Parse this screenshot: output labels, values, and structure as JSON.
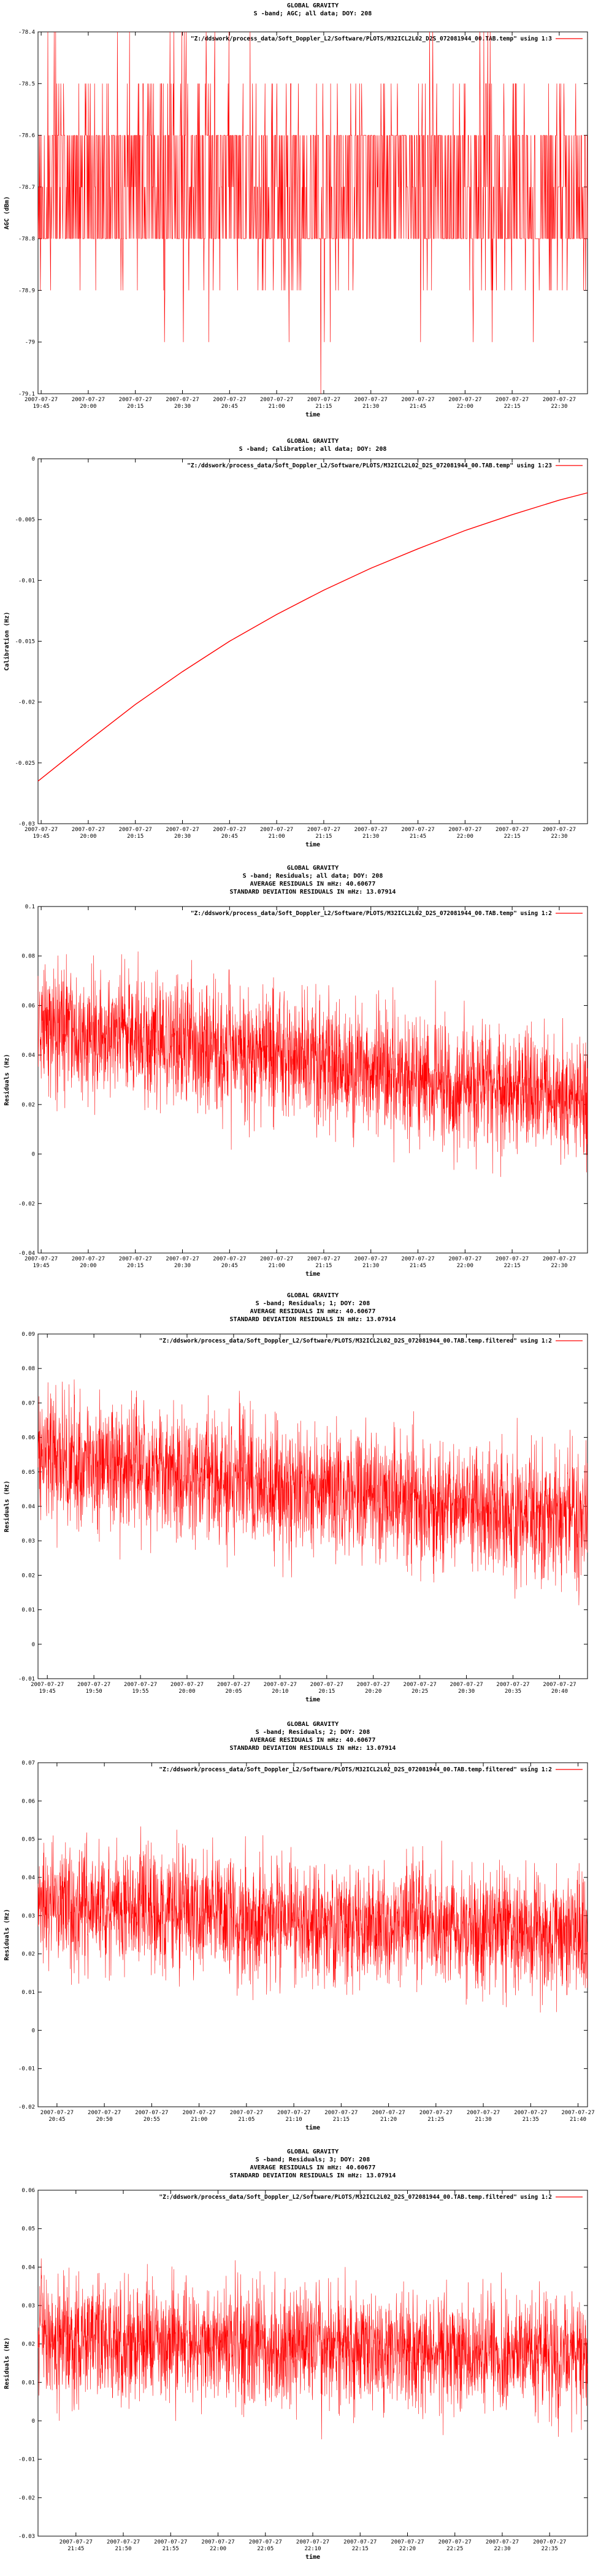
{
  "colors": {
    "series": "#ff0000",
    "axis": "#000000",
    "background": "#ffffff"
  },
  "chart_data": [
    {
      "type": "line",
      "title": [
        "GLOBAL GRAVITY",
        "S -band; AGC; all data; DOY: 208"
      ],
      "xlabel": "time",
      "ylabel": "AGC (dBm)",
      "legend": "\"Z:/ddswork/process_data/Soft_Doppler_L2/Software/PLOTS/M32ICL2L02_D2S_072081944_00.TAB.temp\" using 1:3",
      "legend_position": "top-right",
      "ylim": [
        -79.1,
        -78.4
      ],
      "yticks": [
        "-78.4",
        "-78.5",
        "-78.6",
        "-78.7",
        "-78.8",
        "-78.9",
        "-79",
        "-79.1"
      ],
      "xticks": [
        [
          "2007-07-27",
          "19:45"
        ],
        [
          "2007-07-27",
          "20:00"
        ],
        [
          "2007-07-27",
          "20:15"
        ],
        [
          "2007-07-27",
          "20:30"
        ],
        [
          "2007-07-27",
          "20:45"
        ],
        [
          "2007-07-27",
          "21:00"
        ],
        [
          "2007-07-27",
          "21:15"
        ],
        [
          "2007-07-27",
          "21:30"
        ],
        [
          "2007-07-27",
          "21:45"
        ],
        [
          "2007-07-27",
          "22:00"
        ],
        [
          "2007-07-27",
          "22:15"
        ],
        [
          "2007-07-27",
          "22:30"
        ]
      ],
      "x_range": [
        "2007-07-27 19:44",
        "2007-07-27 22:39"
      ],
      "series": [
        {
          "name": "\"Z:/ddswork/process_data/Soft_Doppler_L2/Software/PLOTS/M32ICL2L02_D2S_072081944_00.TAB.temp\" using 1:3",
          "style": "quantized noise",
          "levels_dBm": [
            -78.4,
            -78.5,
            -78.6,
            -78.7,
            -78.8,
            -78.9,
            -79.0,
            -79.1
          ],
          "dominant_band_dBm": [
            -78.8,
            -78.6
          ]
        }
      ]
    },
    {
      "type": "line",
      "title": [
        "GLOBAL GRAVITY",
        "S -band; Calibration; all data; DOY: 208"
      ],
      "xlabel": "time",
      "ylabel": "Calibration (Hz)",
      "legend": "\"Z:/ddswork/process_data/Soft_Doppler_L2/Software/PLOTS/M32ICL2L02_D2S_072081944_00.TAB.temp\" using 1:23",
      "legend_position": "top-right",
      "ylim": [
        -0.03,
        0
      ],
      "yticks": [
        "0",
        "-0.005",
        "-0.01",
        "-0.015",
        "-0.02",
        "-0.025",
        "-0.03"
      ],
      "xticks": [
        [
          "2007-07-27",
          "19:45"
        ],
        [
          "2007-07-27",
          "20:00"
        ],
        [
          "2007-07-27",
          "20:15"
        ],
        [
          "2007-07-27",
          "20:30"
        ],
        [
          "2007-07-27",
          "20:45"
        ],
        [
          "2007-07-27",
          "21:00"
        ],
        [
          "2007-07-27",
          "21:15"
        ],
        [
          "2007-07-27",
          "21:30"
        ],
        [
          "2007-07-27",
          "21:45"
        ],
        [
          "2007-07-27",
          "22:00"
        ],
        [
          "2007-07-27",
          "22:15"
        ],
        [
          "2007-07-27",
          "22:30"
        ]
      ],
      "x_range": [
        "2007-07-27 19:44",
        "2007-07-27 22:39"
      ],
      "series": [
        {
          "name": "\"Z:/ddswork/process_data/Soft_Doppler_L2/Software/PLOTS/M32ICL2L02_D2S_072081944_00.TAB.temp\" using 1:23",
          "x": [
            "19:44",
            "20:00",
            "20:15",
            "20:30",
            "20:45",
            "21:00",
            "21:15",
            "21:30",
            "21:45",
            "22:00",
            "22:15",
            "22:30",
            "22:39"
          ],
          "y": [
            -0.0265,
            -0.0232,
            -0.0202,
            -0.0175,
            -0.015,
            -0.0128,
            -0.0108,
            -0.009,
            -0.0074,
            -0.0059,
            -0.0046,
            -0.0034,
            -0.0028
          ]
        }
      ]
    },
    {
      "type": "line",
      "title": [
        "GLOBAL GRAVITY",
        "S -band; Residuals; all data; DOY: 208",
        "AVERAGE RESIDUALS IN mHz: 40.60677",
        "STANDARD DEVIATION RESIDUALS IN mHz: 13.07914"
      ],
      "xlabel": "time",
      "ylabel": "Residuals (Hz)",
      "legend": "\"Z:/ddswork/process_data/Soft_Doppler_L2/Software/PLOTS/M32ICL2L02_D2S_072081944_00.TAB.temp\" using 1:2",
      "legend_position": "top-right",
      "ylim": [
        -0.04,
        0.1
      ],
      "yticks": [
        "0.1",
        "0.08",
        "0.06",
        "0.04",
        "0.02",
        "0",
        "-0.02",
        "-0.04"
      ],
      "xticks": [
        [
          "2007-07-27",
          "19:45"
        ],
        [
          "2007-07-27",
          "20:00"
        ],
        [
          "2007-07-27",
          "20:15"
        ],
        [
          "2007-07-27",
          "20:30"
        ],
        [
          "2007-07-27",
          "20:45"
        ],
        [
          "2007-07-27",
          "21:00"
        ],
        [
          "2007-07-27",
          "21:15"
        ],
        [
          "2007-07-27",
          "21:30"
        ],
        [
          "2007-07-27",
          "21:45"
        ],
        [
          "2007-07-27",
          "22:00"
        ],
        [
          "2007-07-27",
          "22:15"
        ],
        [
          "2007-07-27",
          "22:30"
        ]
      ],
      "x_range": [
        "2007-07-27 19:44",
        "2007-07-27 22:39"
      ],
      "series": [
        {
          "name": "\"Z:/ddswork/process_data/Soft_Doppler_L2/Software/PLOTS/M32ICL2L02_D2S_072081944_00.TAB.temp\" using 1:2",
          "style": "noisy trend",
          "trend_x": [
            "19:44",
            "22:39"
          ],
          "trend_y": [
            0.052,
            0.022
          ],
          "approx_range": [
            -0.03,
            0.085
          ]
        }
      ]
    },
    {
      "type": "line",
      "title": [
        "GLOBAL GRAVITY",
        "S -band; Residuals; 1; DOY: 208",
        "AVERAGE RESIDUALS IN mHz: 40.60677",
        "STANDARD DEVIATION RESIDUALS IN mHz: 13.07914"
      ],
      "xlabel": "time",
      "ylabel": "Residuals (Hz)",
      "legend": "\"Z:/ddswork/process_data/Soft_Doppler_L2/Software/PLOTS/M32ICL2L02_D2S_072081944_00.TAB.temp.filtered\" using 1:2",
      "legend_position": "top-right",
      "ylim": [
        -0.01,
        0.09
      ],
      "yticks": [
        "0.09",
        "0.08",
        "0.07",
        "0.06",
        "0.05",
        "0.04",
        "0.03",
        "0.02",
        "0.01",
        "0",
        "-0.01"
      ],
      "xticks": [
        [
          "2007-07-27",
          "19:45"
        ],
        [
          "2007-07-27",
          "19:50"
        ],
        [
          "2007-07-27",
          "19:55"
        ],
        [
          "2007-07-27",
          "20:00"
        ],
        [
          "2007-07-27",
          "20:05"
        ],
        [
          "2007-07-27",
          "20:10"
        ],
        [
          "2007-07-27",
          "20:15"
        ],
        [
          "2007-07-27",
          "20:20"
        ],
        [
          "2007-07-27",
          "20:25"
        ],
        [
          "2007-07-27",
          "20:30"
        ],
        [
          "2007-07-27",
          "20:35"
        ],
        [
          "2007-07-27",
          "20:40"
        ]
      ],
      "x_range": [
        "2007-07-27 19:44",
        "2007-07-27 20:43"
      ],
      "series": [
        {
          "name": "\"Z:/ddswork/process_data/Soft_Doppler_L2/Software/PLOTS/M32ICL2L02_D2S_072081944_00.TAB.temp.filtered\" using 1:2",
          "style": "noisy trend",
          "trend_x": [
            "19:44",
            "20:43"
          ],
          "trend_y": [
            0.054,
            0.036
          ],
          "approx_range": [
            0.0,
            0.085
          ]
        }
      ]
    },
    {
      "type": "line",
      "title": [
        "GLOBAL GRAVITY",
        "S -band; Residuals; 2; DOY: 208",
        "AVERAGE RESIDUALS IN mHz: 40.60677",
        "STANDARD DEVIATION RESIDUALS IN mHz: 13.07914"
      ],
      "xlabel": "time",
      "ylabel": "Residuals (Hz)",
      "legend": "\"Z:/ddswork/process_data/Soft_Doppler_L2/Software/PLOTS/M32ICL2L02_D2S_072081944_00.TAB.temp.filtered\" using 1:2",
      "legend_position": "top-right",
      "ylim": [
        -0.02,
        0.07
      ],
      "yticks": [
        "0.07",
        "0.06",
        "0.05",
        "0.04",
        "0.03",
        "0.02",
        "0.01",
        "0",
        "-0.01",
        "-0.02"
      ],
      "xticks": [
        [
          "2007-07-27",
          "20:45"
        ],
        [
          "2007-07-27",
          "20:50"
        ],
        [
          "2007-07-27",
          "20:55"
        ],
        [
          "2007-07-27",
          "21:00"
        ],
        [
          "2007-07-27",
          "21:05"
        ],
        [
          "2007-07-27",
          "21:10"
        ],
        [
          "2007-07-27",
          "21:15"
        ],
        [
          "2007-07-27",
          "21:20"
        ],
        [
          "2007-07-27",
          "21:25"
        ],
        [
          "2007-07-27",
          "21:30"
        ],
        [
          "2007-07-27",
          "21:35"
        ],
        [
          "2007-07-27",
          "21:40"
        ]
      ],
      "x_range": [
        "2007-07-27 20:43",
        "2007-07-27 21:41"
      ],
      "series": [
        {
          "name": "\"Z:/ddswork/process_data/Soft_Doppler_L2/Software/PLOTS/M32ICL2L02_D2S_072081944_00.TAB.temp.filtered\" using 1:2",
          "style": "noisy trend",
          "trend_x": [
            "20:43",
            "21:41"
          ],
          "trend_y": [
            0.033,
            0.025
          ],
          "approx_range": [
            -0.01,
            0.062
          ]
        }
      ]
    },
    {
      "type": "line",
      "title": [
        "GLOBAL GRAVITY",
        "S -band; Residuals; 3; DOY: 208",
        "AVERAGE RESIDUALS IN mHz: 40.60677",
        "STANDARD DEVIATION RESIDUALS IN mHz: 13.07914"
      ],
      "xlabel": "time",
      "ylabel": "Residuals (Hz)",
      "legend": "\"Z:/ddswork/process_data/Soft_Doppler_L2/Software/PLOTS/M32ICL2L02_D2S_072081944_00.TAB.temp.filtered\" using 1:2",
      "legend_position": "top-right",
      "ylim": [
        -0.03,
        0.06
      ],
      "yticks": [
        "0.06",
        "0.05",
        "0.04",
        "0.03",
        "0.02",
        "0.01",
        "0",
        "-0.01",
        "-0.02",
        "-0.03"
      ],
      "xticks": [
        [
          "2007-07-27",
          "21:45"
        ],
        [
          "2007-07-27",
          "21:50"
        ],
        [
          "2007-07-27",
          "21:55"
        ],
        [
          "2007-07-27",
          "22:00"
        ],
        [
          "2007-07-27",
          "22:05"
        ],
        [
          "2007-07-27",
          "22:10"
        ],
        [
          "2007-07-27",
          "22:15"
        ],
        [
          "2007-07-27",
          "22:20"
        ],
        [
          "2007-07-27",
          "22:25"
        ],
        [
          "2007-07-27",
          "22:30"
        ],
        [
          "2007-07-27",
          "22:35"
        ]
      ],
      "x_range": [
        "2007-07-27 21:41",
        "2007-07-27 22:39"
      ],
      "series": [
        {
          "name": "\"Z:/ddswork/process_data/Soft_Doppler_L2/Software/PLOTS/M32ICL2L02_D2S_072081944_00.TAB.temp.filtered\" using 1:2",
          "style": "noisy trend",
          "trend_x": [
            "21:41",
            "22:39"
          ],
          "trend_y": [
            0.021,
            0.017
          ],
          "approx_range": [
            -0.02,
            0.05
          ]
        }
      ]
    }
  ]
}
